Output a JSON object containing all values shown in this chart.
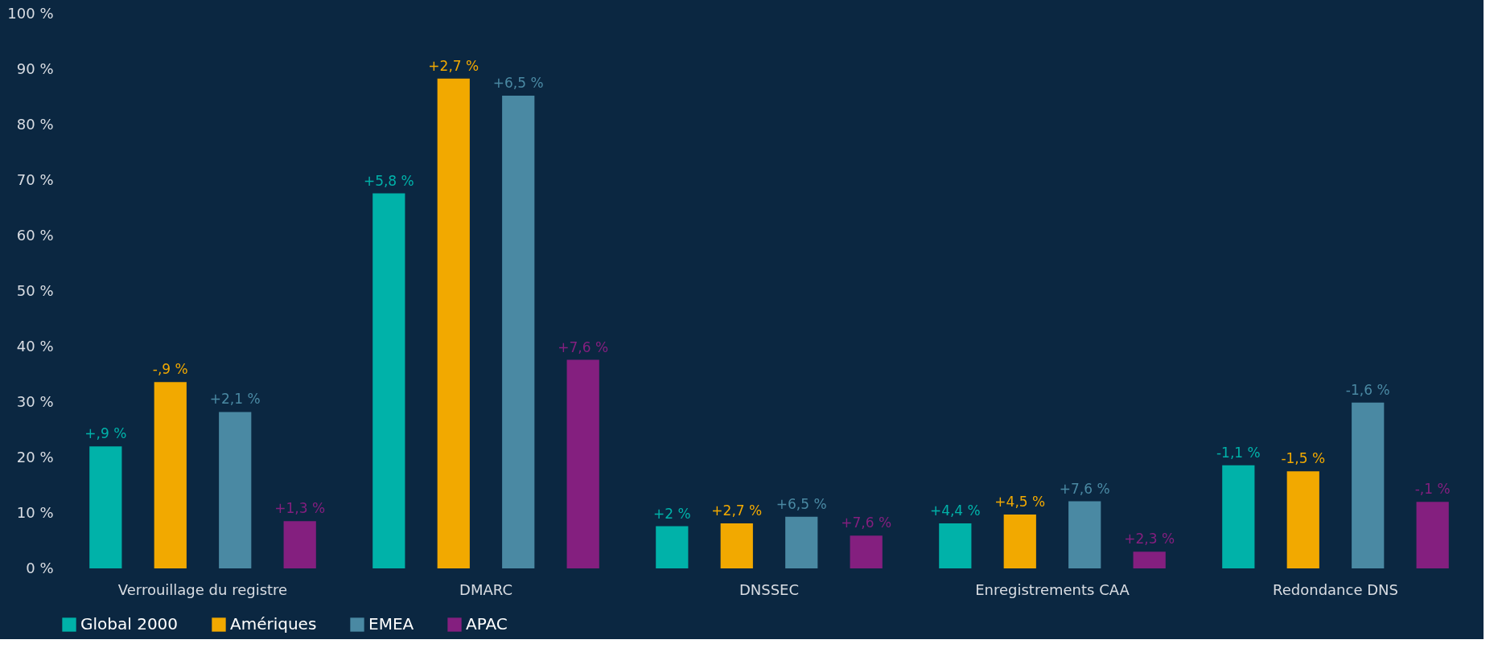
{
  "chart_data": {
    "type": "bar",
    "categories": [
      "Verrouillage du registre",
      "DMARC",
      "DNSSEC",
      "Enregistrements CAA",
      "Redondance DNS"
    ],
    "series": [
      {
        "name": "Global 2000",
        "color": "#00b2a9",
        "values": [
          22.0,
          67.6,
          7.6,
          8.1,
          18.6
        ]
      },
      {
        "name": "Amériques",
        "color": "#f2a900",
        "values": [
          33.6,
          88.3,
          8.1,
          9.7,
          17.5
        ]
      },
      {
        "name": "EMEA",
        "color": "#4a89a3",
        "values": [
          28.2,
          85.2,
          9.3,
          12.1,
          29.9
        ]
      },
      {
        "name": "APAC",
        "color": "#841f7f",
        "values": [
          8.5,
          37.6,
          5.9,
          3.0,
          12.0
        ]
      }
    ],
    "annotations": [
      "+,9 %",
      "+5,8 %",
      "+2 %",
      "+4,4 %",
      "-1,1 %",
      "-,9 %",
      "+2,7 %",
      "+2,7 %",
      "+4,5 %",
      "-1,5 %",
      "+2,1 %",
      "+6,5 %",
      "+6,5 %",
      "+7,6 %",
      "-1,6 %",
      "+1,3 %",
      "+7,6 %",
      "+7,6 %",
      "+2,3 %",
      "-,1 %"
    ],
    "ylim": [
      0,
      100
    ],
    "yticks": [
      {
        "value": 0,
        "label": "0 %"
      },
      {
        "value": 10,
        "label": "10 %"
      },
      {
        "value": 20,
        "label": "20 %"
      },
      {
        "value": 30,
        "label": "30 %"
      },
      {
        "value": 40,
        "label": "40 %"
      },
      {
        "value": 50,
        "label": "50 %"
      },
      {
        "value": 60,
        "label": "60 %"
      },
      {
        "value": 70,
        "label": "70 %"
      },
      {
        "value": 80,
        "label": "80 %"
      },
      {
        "value": 90,
        "label": "90 %"
      },
      {
        "value": 100,
        "label": "100 %"
      }
    ],
    "grid": false,
    "legend": "bottom left"
  }
}
